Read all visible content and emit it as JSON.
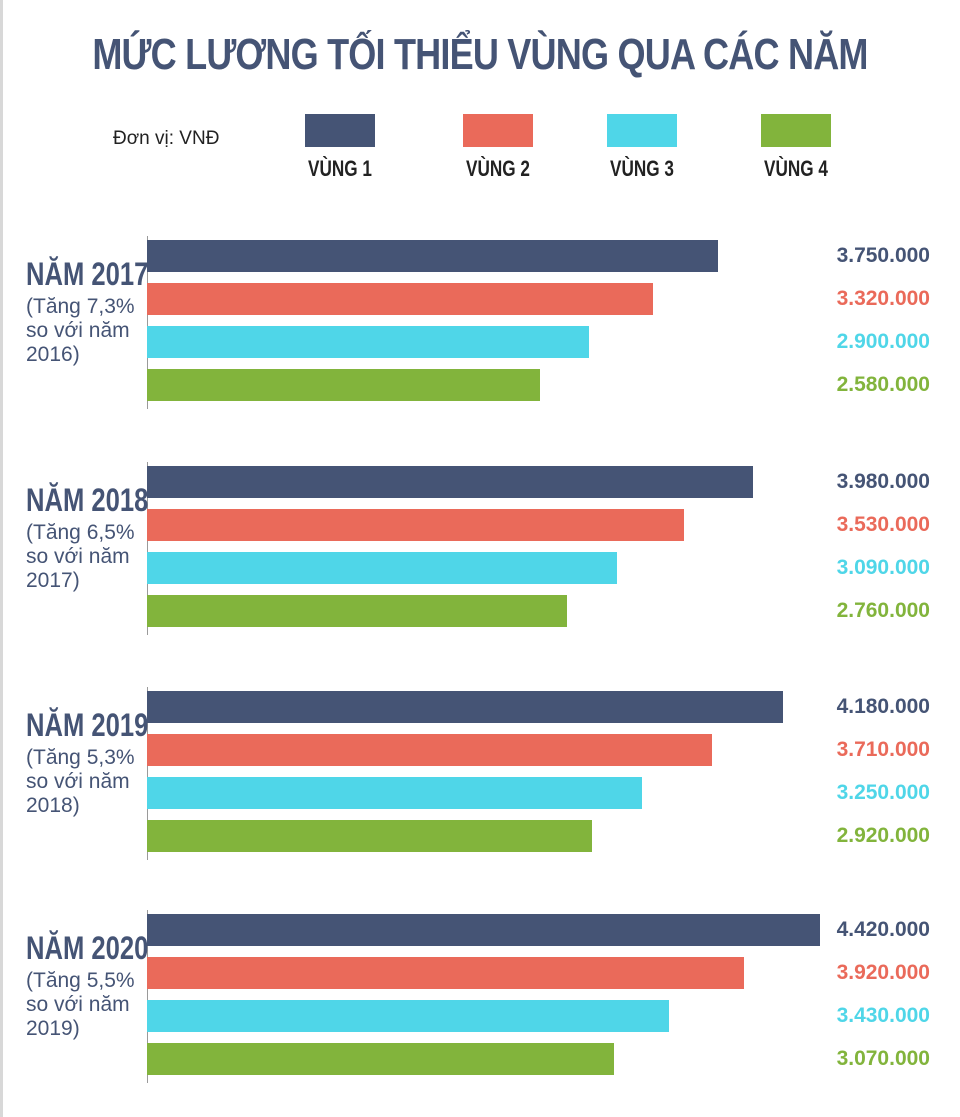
{
  "chart_data": {
    "type": "bar",
    "orientation": "horizontal",
    "title": "MỨC LƯƠNG TỐI THIỂU VÙNG QUA CÁC NĂM",
    "unit_label": "Đơn vị: VNĐ",
    "xlim": [
      0,
      4420000
    ],
    "grid": false,
    "legend_position": "top",
    "series": [
      {
        "name": "VÙNG 1",
        "color": "#455475"
      },
      {
        "name": "VÙNG 2",
        "color": "#ea6a5a"
      },
      {
        "name": "VÙNG 3",
        "color": "#4fd6e8"
      },
      {
        "name": "VÙNG 4",
        "color": "#82b43c"
      }
    ],
    "groups": [
      {
        "title": "NĂM 2017",
        "note_lines": [
          "(Tăng 7,3%",
          "so với năm",
          "2016)"
        ],
        "values": [
          3750000,
          3320000,
          2900000,
          2580000
        ],
        "labels": [
          "3.750.000",
          "3.320.000",
          "2.900.000",
          "2.580.000"
        ]
      },
      {
        "title": "NĂM 2018",
        "note_lines": [
          "(Tăng 6,5%",
          "so với năm",
          "2017)"
        ],
        "values": [
          3980000,
          3530000,
          3090000,
          2760000
        ],
        "labels": [
          "3.980.000",
          "3.530.000",
          "3.090.000",
          "2.760.000"
        ]
      },
      {
        "title": "NĂM 2019",
        "note_lines": [
          "(Tăng 5,3%",
          "so với năm",
          "2018)"
        ],
        "values": [
          4180000,
          3710000,
          3250000,
          2920000
        ],
        "labels": [
          "4.180.000",
          "3.710.000",
          "3.250.000",
          "2.920.000"
        ]
      },
      {
        "title": "NĂM 2020",
        "note_lines": [
          "(Tăng 5,5%",
          "so với năm",
          "2019)"
        ],
        "values": [
          4420000,
          3920000,
          3430000,
          3070000
        ],
        "labels": [
          "4.420.000",
          "3.920.000",
          "3.430.000",
          "3.070.000"
        ]
      }
    ]
  }
}
